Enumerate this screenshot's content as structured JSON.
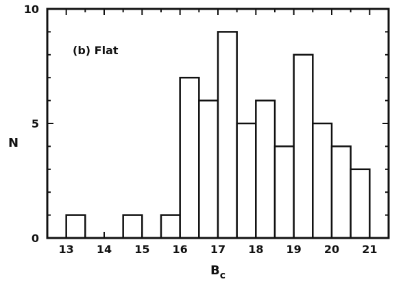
{
  "chart_data": {
    "type": "bar",
    "panel_label": "(b) Flat",
    "xlabel": "B",
    "xlabel_sub": "c",
    "ylabel": "N",
    "xlim": [
      12.5,
      21.5
    ],
    "ylim": [
      0,
      10
    ],
    "x_ticks": [
      13,
      14,
      15,
      16,
      17,
      18,
      19,
      20,
      21
    ],
    "x_tick_labels": [
      "13",
      "14",
      "15",
      "16",
      "17",
      "18",
      "19",
      "20",
      "21"
    ],
    "y_ticks": [
      0,
      5,
      10
    ],
    "y_tick_labels": [
      "0",
      "5",
      "10"
    ],
    "bin_width": 0.5,
    "bins": [
      {
        "x0": 13.0,
        "x1": 13.5,
        "value": 1
      },
      {
        "x0": 14.5,
        "x1": 15.0,
        "value": 1
      },
      {
        "x0": 15.5,
        "x1": 16.0,
        "value": 1
      },
      {
        "x0": 16.0,
        "x1": 16.5,
        "value": 7
      },
      {
        "x0": 16.5,
        "x1": 17.0,
        "value": 6
      },
      {
        "x0": 17.0,
        "x1": 17.5,
        "value": 9
      },
      {
        "x0": 17.5,
        "x1": 18.0,
        "value": 5
      },
      {
        "x0": 18.0,
        "x1": 18.5,
        "value": 6
      },
      {
        "x0": 18.5,
        "x1": 19.0,
        "value": 4
      },
      {
        "x0": 19.0,
        "x1": 19.5,
        "value": 8
      },
      {
        "x0": 19.5,
        "x1": 20.0,
        "value": 5
      },
      {
        "x0": 20.0,
        "x1": 20.5,
        "value": 4
      },
      {
        "x0": 20.5,
        "x1": 21.0,
        "value": 3
      }
    ],
    "grid": false,
    "legend": "none"
  }
}
